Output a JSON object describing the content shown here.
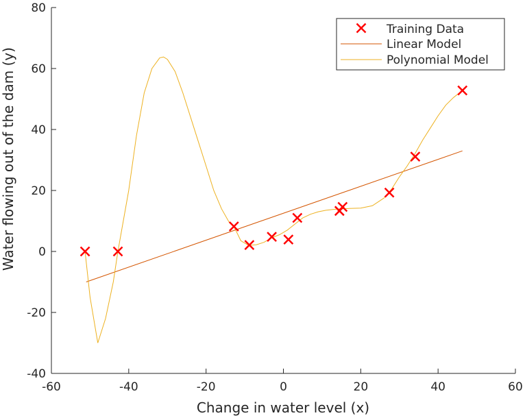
{
  "chart_data": {
    "type": "scatter",
    "title": "",
    "xlabel": "Change in water level (x)",
    "ylabel": "Water flowing out of the dam (y)",
    "xlim": [
      -60,
      60
    ],
    "ylim": [
      -40,
      80
    ],
    "x_ticks": [
      -60,
      -40,
      -20,
      0,
      20,
      40,
      60
    ],
    "y_ticks": [
      -40,
      -20,
      0,
      20,
      40,
      60,
      80
    ],
    "grid": false,
    "legend_position": "top-right",
    "series": [
      {
        "name": "Training Data",
        "kind": "markers",
        "marker": "x",
        "color": "#ff0000",
        "points": [
          [
            -51.3,
            0.0
          ],
          [
            -42.8,
            0.0
          ],
          [
            -12.8,
            8.2
          ],
          [
            -8.8,
            2.1
          ],
          [
            -3.0,
            4.8
          ],
          [
            1.3,
            3.9
          ],
          [
            3.6,
            11.0
          ],
          [
            14.5,
            13.3
          ],
          [
            15.3,
            14.6
          ],
          [
            27.4,
            19.3
          ],
          [
            34.1,
            31.1
          ],
          [
            46.3,
            52.8
          ]
        ]
      },
      {
        "name": "Linear Model",
        "kind": "line",
        "color": "#d45500",
        "points": [
          [
            -51.0,
            -10.0
          ],
          [
            46.3,
            33.0
          ]
        ]
      },
      {
        "name": "Polynomial Model",
        "kind": "line",
        "color": "#edb120",
        "points": [
          [
            -51.3,
            0.0
          ],
          [
            -50,
            -15.0
          ],
          [
            -48,
            -30.0
          ],
          [
            -46,
            -22.0
          ],
          [
            -44,
            -10.0
          ],
          [
            -42.8,
            0.0
          ],
          [
            -40,
            20.0
          ],
          [
            -38,
            38.0
          ],
          [
            -36,
            52.0
          ],
          [
            -34,
            60.0
          ],
          [
            -32,
            63.5
          ],
          [
            -31,
            63.8
          ],
          [
            -30,
            63.0
          ],
          [
            -28,
            59.0
          ],
          [
            -26,
            52.0
          ],
          [
            -24,
            44.0
          ],
          [
            -22,
            36.0
          ],
          [
            -20,
            28.0
          ],
          [
            -18,
            20.0
          ],
          [
            -16,
            14.0
          ],
          [
            -14,
            9.5
          ],
          [
            -12.8,
            8.2
          ],
          [
            -11,
            3.5
          ],
          [
            -9,
            2.0
          ],
          [
            -7,
            2.2
          ],
          [
            -5,
            3.0
          ],
          [
            -3,
            4.5
          ],
          [
            -1,
            5.5
          ],
          [
            1,
            7.0
          ],
          [
            3,
            9.0
          ],
          [
            5,
            11.0
          ],
          [
            7,
            12.2
          ],
          [
            9,
            13.0
          ],
          [
            11,
            13.5
          ],
          [
            13,
            13.8
          ],
          [
            15,
            14.0
          ],
          [
            17,
            14.1
          ],
          [
            20,
            14.2
          ],
          [
            23,
            15.0
          ],
          [
            26,
            17.5
          ],
          [
            28,
            20.5
          ],
          [
            30,
            24.5
          ],
          [
            32,
            28.0
          ],
          [
            34,
            32.0
          ],
          [
            36,
            36.5
          ],
          [
            38,
            40.5
          ],
          [
            40,
            44.5
          ],
          [
            42,
            48.0
          ],
          [
            44,
            50.5
          ],
          [
            46.3,
            52.8
          ]
        ]
      }
    ]
  }
}
